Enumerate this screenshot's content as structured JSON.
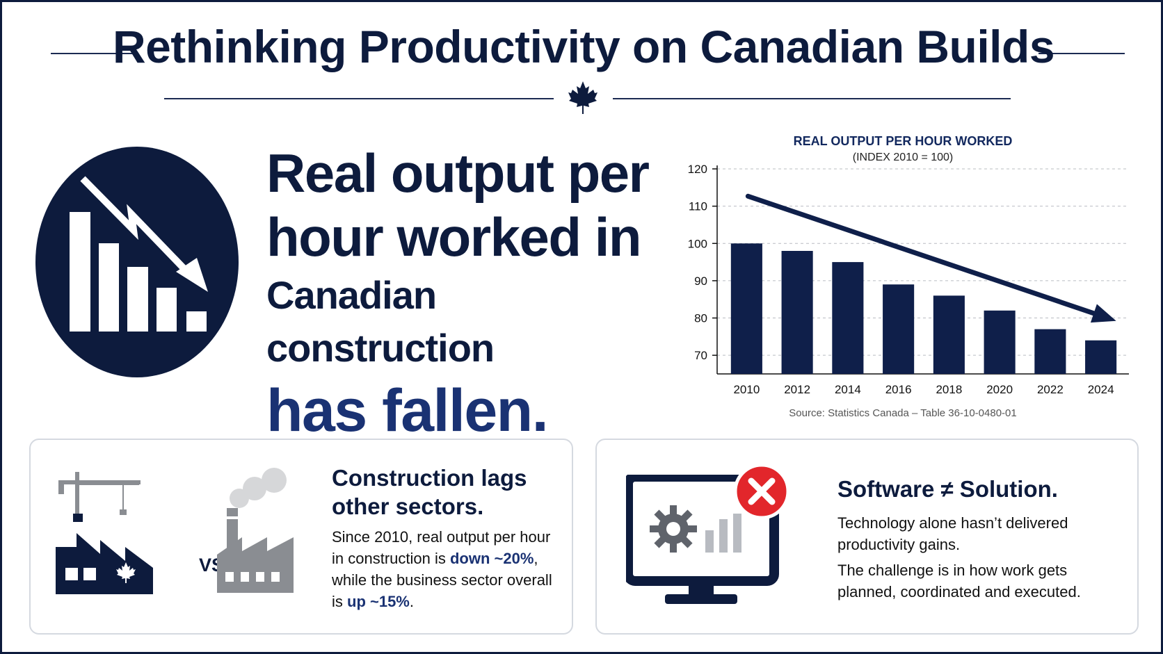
{
  "header": {
    "title": "Rethinking Productivity on Canadian Builds",
    "emblem_icon": "maple-leaf-icon"
  },
  "hero": {
    "icon": "declining-bar-chart-icon",
    "line1": "Real output per",
    "line2": "hour worked in",
    "line3": "Canadian construction",
    "line4": "has fallen."
  },
  "chart_data": {
    "type": "bar",
    "title": "REAL OUTPUT PER HOUR WORKED",
    "subtitle": "(INDEX 2010 = 100)",
    "categories": [
      "2010",
      "2012",
      "2014",
      "2016",
      "2018",
      "2020",
      "2022",
      "2024"
    ],
    "values": [
      100,
      98,
      95,
      89,
      86,
      82,
      77,
      74
    ],
    "ylim": [
      65,
      120
    ],
    "yticks": [
      70,
      80,
      90,
      100,
      110,
      120
    ],
    "grid": true,
    "trend_arrow": true,
    "bar_color": "#0f1f4a",
    "source": "Source: Statistics Canada – Table 36-10-0480-01"
  },
  "card_left": {
    "heading_line1": "Construction lags",
    "heading_line2": "other sectors.",
    "body_pre": "Since 2010, real output per hour in construction is ",
    "body_strong1": "down ~20%",
    "body_mid": ", while the business sector overall is ",
    "body_strong2": "up ~15%",
    "body_post": ".",
    "vs_label": "VS.",
    "icons": [
      "construction-factory-icon",
      "industrial-factory-icon"
    ]
  },
  "card_right": {
    "heading": "Software ≠ Solution.",
    "body_line1": "Technology alone hasn’t delivered productivity gains.",
    "body_line2": "The challenge is in how work gets planned, coordinated and executed.",
    "icons": [
      "computer-monitor-icon",
      "error-x-icon"
    ]
  },
  "colors": {
    "navy": "#0d1b3d",
    "accent_blue": "#1a3273",
    "grey": "#8a8d92",
    "error_red": "#e2262b"
  }
}
